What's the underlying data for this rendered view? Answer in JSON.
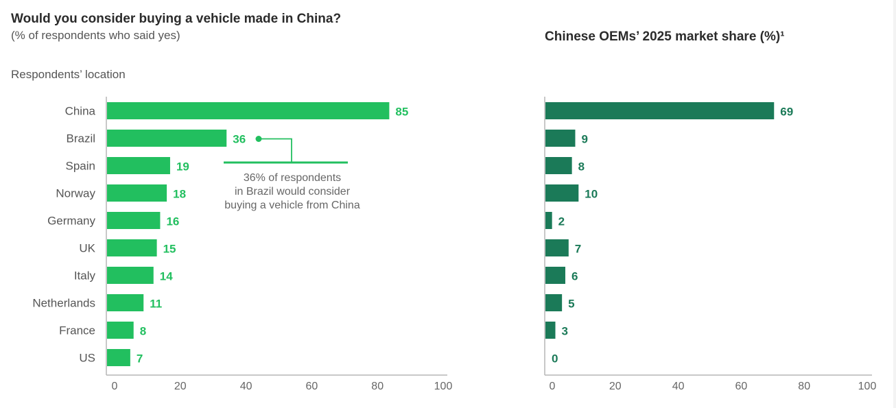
{
  "chart_data": [
    {
      "type": "bar",
      "orientation": "horizontal",
      "title": "Would you consider buying a vehicle made in China?",
      "subtitle": "(% of respondents who said yes)",
      "ylabel": "Respondents’ location",
      "xlabel": "",
      "categories": [
        "China",
        "Brazil",
        "Spain",
        "Norway",
        "Germany",
        "UK",
        "Italy",
        "Netherlands",
        "France",
        "US"
      ],
      "values": [
        85,
        36,
        19,
        18,
        16,
        15,
        14,
        11,
        8,
        7
      ],
      "xlim": [
        0,
        100
      ],
      "xticks": [
        0,
        20,
        40,
        60,
        80,
        100
      ],
      "grid": false,
      "color": "#22bf5f",
      "annotation": {
        "target_category": "Brazil",
        "lines": [
          "36% of respondents",
          "in Brazil would consider",
          "buying a vehicle from China"
        ]
      }
    },
    {
      "type": "bar",
      "orientation": "horizontal",
      "title": "Chinese OEMs’ 2025 market share (%)¹",
      "xlabel": "",
      "categories": [
        "China",
        "Brazil",
        "Spain",
        "Norway",
        "Germany",
        "UK",
        "Italy",
        "Netherlands",
        "France",
        "US"
      ],
      "values": [
        69,
        9,
        8,
        10,
        2,
        7,
        6,
        5,
        3,
        0
      ],
      "xlim": [
        0,
        100
      ],
      "xticks": [
        0,
        20,
        40,
        60,
        80,
        100
      ],
      "grid": false,
      "color": "#1b7a58"
    }
  ],
  "colors": {
    "left_bar": "#22bf5f",
    "right_bar": "#1b7a58",
    "axis": "#b5b5b5"
  }
}
